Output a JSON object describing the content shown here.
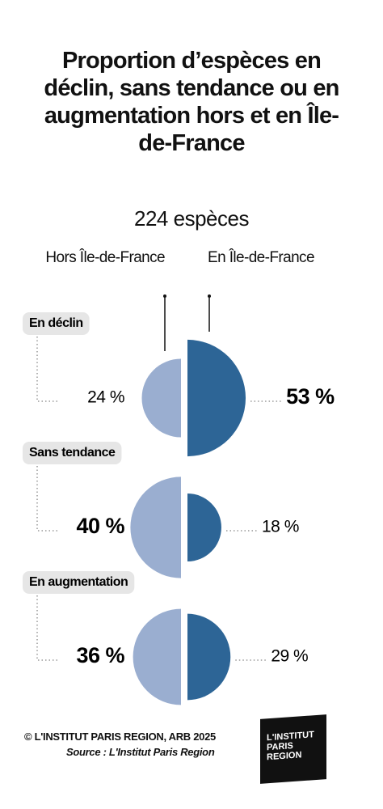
{
  "chart_data": {
    "type": "paired-semicircle",
    "title": "Proportion d’espèces en déclin, sans tendance ou en augmentation hors et en Île-de-France",
    "subtitle": "224 espèces",
    "categories": [
      "En déclin",
      "Sans tendance",
      "En augmentation"
    ],
    "series": [
      {
        "name": "Hors Île-de-France",
        "color": "#9aaed0",
        "values": [
          24,
          40,
          36
        ],
        "value_labels": [
          "24 %",
          "40 %",
          "36 %"
        ]
      },
      {
        "name": "En Île-de-France",
        "color": "#2d6596",
        "values": [
          53,
          18,
          29
        ],
        "value_labels": [
          "53 %",
          "18 %",
          "29 %"
        ]
      }
    ]
  },
  "footer": {
    "credit": "© L'INSTITUT PARIS REGION, ARB 2025",
    "source": "Source : L'Institut Paris Region",
    "logo": "L'INSTITUT PARIS REGION"
  }
}
